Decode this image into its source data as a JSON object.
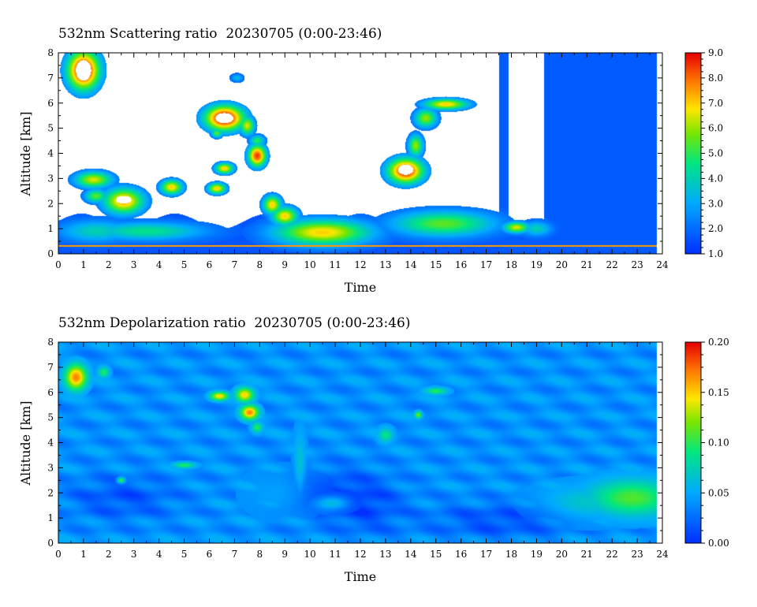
{
  "chart_data": [
    {
      "type": "heatmap",
      "title": "532nm Scattering ratio  20230705 (0:00-23:46)",
      "xlabel": "Time",
      "ylabel": "Altitude [km]",
      "xlim": [
        0,
        24
      ],
      "ylim": [
        0,
        8
      ],
      "x_ticks": [
        "0",
        "1",
        "2",
        "3",
        "4",
        "5",
        "6",
        "7",
        "8",
        "9",
        "10",
        "11",
        "12",
        "13",
        "14",
        "15",
        "16",
        "17",
        "18",
        "19",
        "20",
        "21",
        "22",
        "23",
        "24"
      ],
      "y_ticks": [
        "0",
        "1",
        "2",
        "3",
        "4",
        "5",
        "6",
        "7",
        "8"
      ],
      "colorbar": {
        "range": [
          1.0,
          9.0
        ],
        "ticks": [
          "1.0",
          "2.0",
          "3.0",
          "4.0",
          "5.0",
          "6.0",
          "7.0",
          "8.0",
          "9.0"
        ]
      },
      "data_end": 23.77,
      "background": 1.6,
      "fill_start": 17.5,
      "fill_value": 1.7,
      "blobs": [
        {
          "t": 1.0,
          "h": 7.3,
          "st": 0.45,
          "sh": 0.55,
          "v": 9.5
        },
        {
          "t": 1.4,
          "h": 2.95,
          "st": 0.5,
          "sh": 0.22,
          "v": 6.5
        },
        {
          "t": 1.5,
          "h": 2.3,
          "st": 0.3,
          "sh": 0.18,
          "v": 5.5
        },
        {
          "t": 2.6,
          "h": 2.1,
          "st": 0.55,
          "sh": 0.35,
          "v": 7.5
        },
        {
          "t": 4.5,
          "h": 2.65,
          "st": 0.3,
          "sh": 0.2,
          "v": 7.0
        },
        {
          "t": 6.6,
          "h": 5.4,
          "st": 0.55,
          "sh": 0.35,
          "v": 9.5
        },
        {
          "t": 7.5,
          "h": 5.1,
          "st": 0.2,
          "sh": 0.25,
          "v": 6.5
        },
        {
          "t": 6.3,
          "h": 4.8,
          "st": 0.15,
          "sh": 0.12,
          "v": 5.5
        },
        {
          "t": 7.9,
          "h": 4.5,
          "st": 0.2,
          "sh": 0.15,
          "v": 5.0
        },
        {
          "t": 7.9,
          "h": 3.9,
          "st": 0.25,
          "sh": 0.3,
          "v": 8.5
        },
        {
          "t": 6.6,
          "h": 3.4,
          "st": 0.25,
          "sh": 0.15,
          "v": 7.0
        },
        {
          "t": 6.3,
          "h": 2.6,
          "st": 0.25,
          "sh": 0.15,
          "v": 7.0
        },
        {
          "t": 7.1,
          "h": 7.0,
          "st": 0.15,
          "sh": 0.1,
          "v": 3.5
        },
        {
          "t": 8.5,
          "h": 1.95,
          "st": 0.25,
          "sh": 0.25,
          "v": 7.0
        },
        {
          "t": 9.0,
          "h": 1.5,
          "st": 0.35,
          "sh": 0.25,
          "v": 7.0
        },
        {
          "t": 10.5,
          "h": 0.85,
          "st": 1.3,
          "sh": 0.35,
          "v": 7.0
        },
        {
          "t": 3.5,
          "h": 0.9,
          "st": 1.6,
          "sh": 0.25,
          "v": 4.5
        },
        {
          "t": 1.5,
          "h": 0.9,
          "st": 1.0,
          "sh": 0.3,
          "v": 4.0
        },
        {
          "t": 13.8,
          "h": 3.3,
          "st": 0.5,
          "sh": 0.35,
          "v": 9.0
        },
        {
          "t": 14.2,
          "h": 4.3,
          "st": 0.2,
          "sh": 0.3,
          "v": 6.0
        },
        {
          "t": 14.6,
          "h": 5.4,
          "st": 0.3,
          "sh": 0.25,
          "v": 6.0
        },
        {
          "t": 15.4,
          "h": 5.95,
          "st": 0.6,
          "sh": 0.15,
          "v": 7.0
        },
        {
          "t": 15.3,
          "h": 1.2,
          "st": 1.4,
          "sh": 0.35,
          "v": 5.5
        },
        {
          "t": 18.2,
          "h": 1.05,
          "st": 0.35,
          "sh": 0.15,
          "v": 6.5
        },
        {
          "t": 19.0,
          "h": 1.0,
          "st": 0.4,
          "sh": 0.2,
          "v": 4.0
        }
      ],
      "white_regions": [
        {
          "t": 1.0,
          "h": 7.3,
          "st": 0.3,
          "sh": 0.4
        },
        {
          "t": 6.6,
          "h": 5.4,
          "st": 0.35,
          "sh": 0.2
        },
        {
          "t": 2.6,
          "h": 2.15,
          "st": 0.3,
          "sh": 0.15
        },
        {
          "t": 13.8,
          "h": 3.35,
          "st": 0.3,
          "sh": 0.2
        }
      ]
    },
    {
      "type": "heatmap",
      "title": "532nm Depolarization ratio  20230705 (0:00-23:46)",
      "xlabel": "Time",
      "ylabel": "Altitude [km]",
      "xlim": [
        0,
        24
      ],
      "ylim": [
        0,
        8
      ],
      "x_ticks": [
        "0",
        "1",
        "2",
        "3",
        "4",
        "5",
        "6",
        "7",
        "8",
        "9",
        "10",
        "11",
        "12",
        "13",
        "14",
        "15",
        "16",
        "17",
        "18",
        "19",
        "20",
        "21",
        "22",
        "23",
        "24"
      ],
      "y_ticks": [
        "0",
        "1",
        "2",
        "3",
        "4",
        "5",
        "6",
        "7",
        "8"
      ],
      "colorbar": {
        "range": [
          0.0,
          0.2
        ],
        "ticks": [
          "0.00",
          "0.05",
          "0.10",
          "0.15",
          "0.20"
        ]
      },
      "data_end": 23.77,
      "background": 0.04,
      "blobs": [
        {
          "t": 0.7,
          "h": 6.6,
          "st": 0.3,
          "sh": 0.35,
          "v": 0.17
        },
        {
          "t": 1.8,
          "h": 6.8,
          "st": 0.15,
          "sh": 0.15,
          "v": 0.1
        },
        {
          "t": 6.4,
          "h": 5.85,
          "st": 0.25,
          "sh": 0.12,
          "v": 0.15
        },
        {
          "t": 7.4,
          "h": 5.9,
          "st": 0.25,
          "sh": 0.2,
          "v": 0.15
        },
        {
          "t": 7.6,
          "h": 5.2,
          "st": 0.25,
          "sh": 0.2,
          "v": 0.17
        },
        {
          "t": 7.9,
          "h": 4.6,
          "st": 0.15,
          "sh": 0.15,
          "v": 0.1
        },
        {
          "t": 14.3,
          "h": 5.1,
          "st": 0.1,
          "sh": 0.1,
          "v": 0.12
        },
        {
          "t": 15.0,
          "h": 6.05,
          "st": 0.3,
          "sh": 0.1,
          "v": 0.1
        },
        {
          "t": 13.0,
          "h": 4.3,
          "st": 0.2,
          "sh": 0.2,
          "v": 0.09
        },
        {
          "t": 2.5,
          "h": 2.5,
          "st": 0.1,
          "sh": 0.08,
          "v": 0.12
        },
        {
          "t": 5.0,
          "h": 3.1,
          "st": 0.3,
          "sh": 0.08,
          "v": 0.1
        },
        {
          "t": 22.8,
          "h": 1.8,
          "st": 1.2,
          "sh": 0.5,
          "v": 0.11
        },
        {
          "t": 21.0,
          "h": 1.6,
          "st": 1.2,
          "sh": 0.45,
          "v": 0.07
        },
        {
          "t": 10.9,
          "h": 1.6,
          "st": 0.5,
          "sh": 0.2,
          "v": 0.09
        },
        {
          "t": 9.6,
          "h": 3.0,
          "st": 0.15,
          "sh": 0.9,
          "v": 0.07
        },
        {
          "t": 9.0,
          "h": 2.0,
          "st": 0.8,
          "sh": 0.5,
          "v": 0.055
        }
      ],
      "dark_regions": [
        {
          "t": 10.5,
          "h": 2.0,
          "st": 1.2,
          "sh": 0.7
        },
        {
          "t": 12.3,
          "h": 1.5,
          "st": 1.0,
          "sh": 0.8
        },
        {
          "t": 2.5,
          "h": 1.8,
          "st": 1.5,
          "sh": 0.6
        },
        {
          "t": 17.5,
          "h": 0.9,
          "st": 2.0,
          "sh": 0.5
        }
      ]
    }
  ]
}
